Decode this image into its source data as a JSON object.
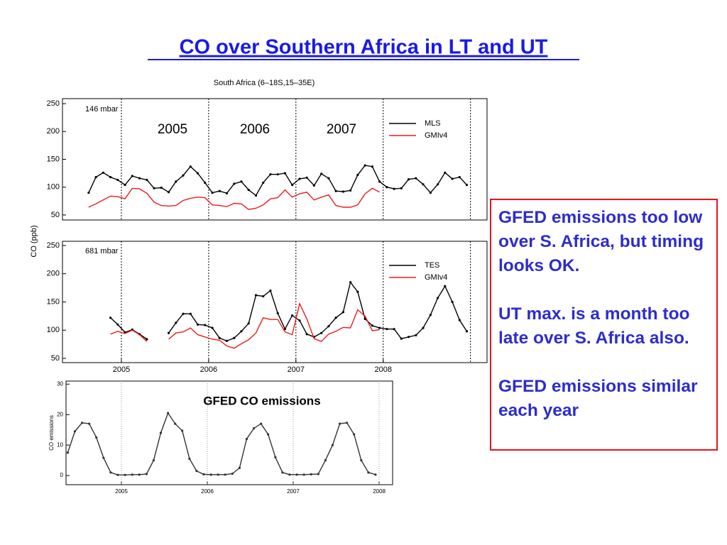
{
  "slide_title": "CO over Southern Africa in LT and UT",
  "text_box": [
    "GFED emissions too low over S. Africa, but timing looks OK.",
    "UT max. is a month too late over S. Africa also.",
    "GFED emissions similar each year"
  ],
  "chart_data": [
    {
      "type": "line",
      "title": "South Africa (6–18S,15–35E)",
      "ylabel": "CO (ppb)",
      "annotations": [
        "146 mbar",
        "2005",
        "2006",
        "2007"
      ],
      "x": [
        2004.625,
        2004.708,
        2004.792,
        2004.875,
        2004.958,
        2005.042,
        2005.125,
        2005.208,
        2005.292,
        2005.375,
        2005.458,
        2005.542,
        2005.625,
        2005.708,
        2005.792,
        2005.875,
        2005.958,
        2006.042,
        2006.125,
        2006.208,
        2006.292,
        2006.375,
        2006.458,
        2006.542,
        2006.625,
        2006.708,
        2006.792,
        2006.875,
        2006.958,
        2007.042,
        2007.125,
        2007.208,
        2007.292,
        2007.375,
        2007.458,
        2007.542,
        2007.625,
        2007.708,
        2007.792,
        2007.875,
        2007.958,
        2008.042,
        2008.125,
        2008.208,
        2008.292,
        2008.375,
        2008.458,
        2008.542,
        2008.625,
        2008.708,
        2008.792,
        2008.875,
        2008.958
      ],
      "series": [
        {
          "name": "MLS",
          "color": "#000000",
          "marker": true,
          "values": [
            90,
            118,
            126,
            118,
            113,
            104,
            120,
            116,
            113,
            98,
            99,
            91,
            110,
            121,
            137,
            125,
            108,
            90,
            93,
            89,
            106,
            110,
            95,
            85,
            108,
            123,
            123,
            125,
            104,
            115,
            117,
            103,
            124,
            116,
            93,
            92,
            94,
            122,
            139,
            137,
            110,
            100,
            97,
            98,
            114,
            116,
            105,
            90,
            105,
            126,
            115,
            118,
            104
          ]
        },
        {
          "name": "GMIv4",
          "color": "#ee1c1c",
          "marker": false,
          "values": [
            64,
            70,
            77,
            84,
            83,
            79,
            98,
            97,
            89,
            73,
            67,
            66,
            67,
            76,
            80,
            82,
            81,
            68,
            67,
            65,
            71,
            70,
            60,
            62,
            68,
            79,
            81,
            95,
            82,
            88,
            91,
            77,
            82,
            86,
            67,
            64,
            64,
            68,
            88,
            98,
            91,
            null,
            null,
            null,
            null,
            null,
            null,
            null,
            null,
            null,
            null,
            null,
            null
          ]
        }
      ],
      "xlim": [
        2004.325,
        2009.19
      ],
      "ylim": [
        41,
        259
      ],
      "yticks": [
        50,
        100,
        150,
        200,
        250
      ],
      "vlines": [
        2005,
        2006,
        2007,
        2008,
        2009
      ],
      "legend": "upper right"
    },
    {
      "type": "line",
      "annotations": [
        "681 mbar"
      ],
      "x": [
        2004.875,
        2004.958,
        2005.042,
        2005.125,
        2005.208,
        2005.292,
        2005.375,
        2005.458,
        2005.542,
        2005.625,
        2005.708,
        2005.792,
        2005.875,
        2005.958,
        2006.042,
        2006.125,
        2006.208,
        2006.292,
        2006.375,
        2006.458,
        2006.542,
        2006.625,
        2006.708,
        2006.792,
        2006.875,
        2006.958,
        2007.042,
        2007.125,
        2007.208,
        2007.292,
        2007.375,
        2007.458,
        2007.542,
        2007.625,
        2007.708,
        2007.792,
        2007.875,
        2007.958,
        2008.042,
        2008.125,
        2008.208,
        2008.292,
        2008.375,
        2008.458,
        2008.542,
        2008.625,
        2008.708,
        2008.792,
        2008.875,
        2008.958
      ],
      "series": [
        {
          "name": "TES",
          "color": "#000000",
          "marker": true,
          "values": [
            122,
            110,
            96,
            101,
            93,
            84,
            null,
            null,
            95,
            113,
            129,
            129,
            110,
            109,
            104,
            86,
            81,
            86,
            98,
            112,
            162,
            160,
            170,
            130,
            102,
            126,
            117,
            93,
            88,
            95,
            107,
            122,
            132,
            185,
            168,
            120,
            108,
            104,
            102,
            102,
            85,
            88,
            91,
            104,
            127,
            157,
            178,
            150,
            118,
            98
          ]
        },
        {
          "name": "GMIv4",
          "color": "#ee1c1c",
          "marker": false,
          "values": [
            93,
            98,
            94,
            100,
            92,
            80,
            null,
            null,
            84,
            95,
            97,
            104,
            92,
            88,
            84,
            82,
            72,
            68,
            76,
            83,
            95,
            122,
            119,
            119,
            97,
            92,
            147,
            120,
            85,
            80,
            93,
            98,
            105,
            104,
            136,
            125,
            99,
            101,
            null,
            null,
            null,
            null,
            null,
            null,
            null,
            null,
            null,
            null,
            null,
            null
          ]
        }
      ],
      "xlim": [
        2004.325,
        2009.19
      ],
      "ylim": [
        42.5,
        257.5
      ],
      "yticks": [
        50,
        100,
        150,
        200,
        250
      ],
      "xticks": [
        2005,
        2006,
        2007,
        2008
      ],
      "vlines": [
        2005,
        2006,
        2007,
        2008,
        2009
      ],
      "legend": "upper right"
    },
    {
      "type": "line",
      "ylabel": "CO emissions",
      "annotations": [
        "GFED CO emissions"
      ],
      "x": [
        2004.375,
        2004.458,
        2004.542,
        2004.625,
        2004.708,
        2004.792,
        2004.875,
        2004.958,
        2005.042,
        2005.125,
        2005.208,
        2005.292,
        2005.375,
        2005.458,
        2005.542,
        2005.625,
        2005.708,
        2005.792,
        2005.875,
        2005.958,
        2006.042,
        2006.125,
        2006.208,
        2006.292,
        2006.375,
        2006.458,
        2006.542,
        2006.625,
        2006.708,
        2006.792,
        2006.875,
        2006.958,
        2007.042,
        2007.125,
        2007.208,
        2007.292,
        2007.375,
        2007.458,
        2007.542,
        2007.625,
        2007.708,
        2007.792,
        2007.875,
        2007.958
      ],
      "series": [
        {
          "color": "#333333",
          "marker": true,
          "values": [
            7.5,
            14.5,
            17.3,
            17,
            12.5,
            5.8,
            1,
            0.2,
            0.2,
            0.3,
            0.3,
            0.5,
            5,
            14,
            20.5,
            17,
            14.7,
            5.5,
            1.5,
            0.4,
            0.3,
            0.3,
            0.3,
            0.6,
            2.5,
            12,
            15.5,
            17,
            13.5,
            6,
            1,
            0.3,
            0.3,
            0.3,
            0.4,
            0.5,
            5,
            10,
            17,
            17.3,
            13.5,
            5,
            1,
            0.3
          ]
        }
      ],
      "xlim": [
        2004.355,
        2008.157
      ],
      "ylim": [
        -3,
        31
      ],
      "yticks": [
        0,
        10,
        20,
        30
      ],
      "xticks": [
        2005,
        2006,
        2007,
        2008
      ],
      "grid": true
    }
  ]
}
